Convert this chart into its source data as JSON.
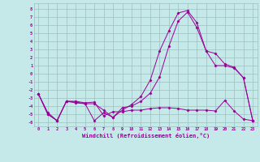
{
  "xlabel": "Windchill (Refroidissement éolien,°C)",
  "background_color": "#c5e8e8",
  "grid_color": "#9dbfbf",
  "line_color": "#990099",
  "line_color2": "#cc44cc",
  "xticks": [
    0,
    1,
    2,
    3,
    4,
    5,
    6,
    7,
    8,
    9,
    10,
    11,
    12,
    13,
    14,
    15,
    16,
    17,
    18,
    19,
    20,
    21,
    22,
    23
  ],
  "yticks": [
    8,
    7,
    6,
    5,
    4,
    3,
    2,
    1,
    0,
    -1,
    -2,
    -3,
    -4,
    -5,
    -6
  ],
  "line1_x": [
    0,
    1,
    2,
    3,
    4,
    5,
    6,
    7,
    8,
    9,
    10,
    11,
    12,
    13,
    14,
    15,
    16,
    17,
    18,
    19,
    20,
    21,
    22,
    23
  ],
  "line1_y": [
    -2.5,
    -5.0,
    -5.8,
    -3.4,
    -3.4,
    -3.6,
    -3.5,
    -5.2,
    -4.7,
    -4.7,
    -4.5,
    -4.5,
    -4.3,
    -4.2,
    -4.2,
    -4.3,
    -4.5,
    -4.5,
    -4.5,
    -4.6,
    -3.3,
    -4.6,
    -5.6,
    -5.8
  ],
  "line2_x": [
    0,
    1,
    2,
    3,
    4,
    5,
    6,
    7,
    8,
    9,
    10,
    11,
    12,
    13,
    14,
    15,
    16,
    17,
    18,
    19,
    20,
    21,
    22,
    23
  ],
  "line2_y": [
    -2.5,
    -5.0,
    -5.8,
    -3.4,
    -3.6,
    -3.7,
    -5.8,
    -4.8,
    -5.4,
    -4.5,
    -3.8,
    -2.8,
    -0.8,
    2.8,
    5.3,
    7.5,
    7.8,
    6.3,
    2.8,
    2.5,
    1.2,
    0.8,
    -0.5,
    -5.8
  ],
  "line3_x": [
    0,
    1,
    2,
    3,
    4,
    5,
    6,
    7,
    8,
    9,
    10,
    11,
    12,
    13,
    14,
    15,
    16,
    17,
    18,
    19,
    20,
    21,
    22,
    23
  ],
  "line3_y": [
    -2.5,
    -4.8,
    -5.8,
    -3.4,
    -3.5,
    -3.7,
    -3.7,
    -4.5,
    -5.4,
    -4.2,
    -4.0,
    -3.4,
    -2.4,
    -0.4,
    3.4,
    6.5,
    7.6,
    5.7,
    2.8,
    1.0,
    1.0,
    0.7,
    -0.5,
    -5.8
  ]
}
